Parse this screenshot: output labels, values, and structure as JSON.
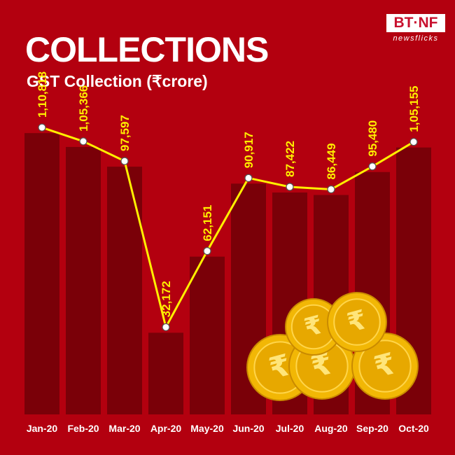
{
  "header": {
    "title": "COLLECTIONS",
    "subtitle": "GST Collection (₹crore)"
  },
  "logo": {
    "top": "BT·NF",
    "bottom": "newsflicks"
  },
  "colors": {
    "background": "#b3000f",
    "bar": "#7a0008",
    "line": "#ffef00",
    "label": "#ffef00",
    "coin": "#f2b705"
  },
  "coins_icon": "rupee-coins-illustration",
  "chart_data": {
    "type": "bar",
    "title": "GST Collection (₹crore)",
    "categories": [
      "Jan-20",
      "Feb-20",
      "Mar-20",
      "Apr-20",
      "May-20",
      "Jun-20",
      "Jul-20",
      "Aug-20",
      "Sep-20",
      "Oct-20"
    ],
    "values": [
      110818,
      105366,
      97597,
      32172,
      62151,
      90917,
      87422,
      86449,
      95480,
      105155
    ],
    "value_labels": [
      "1,10,818",
      "1,05,366",
      "97,597",
      "32,172",
      "62,151",
      "90,917",
      "87,422",
      "86,449",
      "95,480",
      "1,05,155"
    ],
    "overlay": "line",
    "grid": false,
    "legend": "none"
  }
}
